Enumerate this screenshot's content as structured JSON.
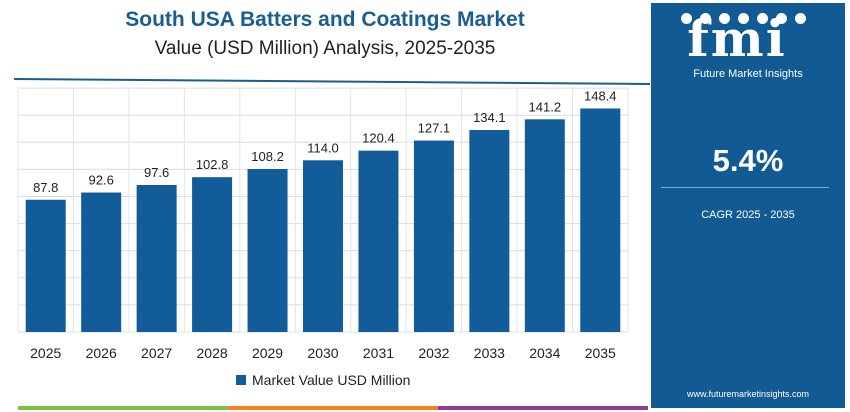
{
  "chart_data": {
    "type": "bar",
    "title": "South USA Batters and Coatings Market",
    "subtitle": "Value (USD Million) Analysis, 2025-2035",
    "categories": [
      "2025",
      "2026",
      "2027",
      "2028",
      "2029",
      "2030",
      "2031",
      "2032",
      "2033",
      "2034",
      "2035"
    ],
    "values": [
      87.8,
      92.6,
      97.6,
      102.8,
      108.2,
      114.0,
      120.4,
      127.1,
      134.1,
      141.2,
      148.4
    ],
    "value_labels": [
      "87.8",
      "92.6",
      "97.6",
      "102.8",
      "108.2",
      "114.0",
      "120.4",
      "127.1",
      "134.1",
      "141.2",
      "148.4"
    ],
    "series": [
      {
        "name": "Market Value USD Million",
        "values": [
          87.8,
          92.6,
          97.6,
          102.8,
          108.2,
          114.0,
          120.4,
          127.1,
          134.1,
          141.2,
          148.4
        ]
      }
    ],
    "ylim": [
      0,
      162
    ],
    "grid": true,
    "legend": "bottom",
    "bar_color": "#125c99"
  },
  "legend": {
    "label": "Market Value USD Million"
  },
  "panel": {
    "logo": "fmi",
    "logo_subtitle": "Future Market Insights",
    "cagr_value": "5.4%",
    "cagr_label": "CAGR 2025 - 2035",
    "website": "www.futuremarketinsights.com"
  },
  "colors": {
    "title": "#1a5e91",
    "panel_bg": "#125a94",
    "accent_stripes": [
      "#7cc142",
      "#f58220",
      "#8e3a96"
    ]
  }
}
